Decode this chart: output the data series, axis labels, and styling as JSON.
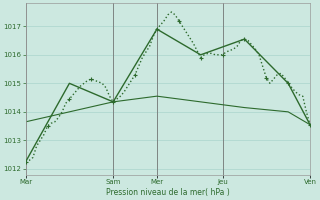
{
  "background_color": "#cce8e0",
  "grid_color": "#aad4cc",
  "line_color": "#2d6a2d",
  "ylim": [
    1011.8,
    1017.8
  ],
  "yticks": [
    1012,
    1013,
    1014,
    1015,
    1016,
    1017
  ],
  "xlabel": "Pression niveau de la mer( hPa )",
  "xtick_labels": [
    "Mar",
    "Sam",
    "Mer",
    "Jeu",
    "Ven"
  ],
  "xtick_positions": [
    0,
    24,
    36,
    54,
    78
  ],
  "x_vlines": [
    0,
    24,
    36,
    54,
    78
  ],
  "xlim": [
    0,
    78
  ],
  "series1_dotted": {
    "x": [
      0,
      1,
      2,
      3,
      4,
      5,
      6,
      7,
      8,
      9,
      10,
      11,
      12,
      13,
      14,
      15,
      16,
      17,
      18,
      19,
      20,
      21,
      22,
      23,
      24,
      25,
      26,
      27,
      28,
      29,
      30,
      31,
      32,
      33,
      34,
      35,
      36,
      37,
      38,
      39,
      40,
      41,
      42,
      43,
      44,
      45,
      46,
      47,
      48,
      49,
      50,
      51,
      52,
      53,
      54,
      55,
      56,
      57,
      58,
      59,
      60,
      61,
      62,
      63,
      64,
      65,
      66,
      67,
      68,
      69,
      70,
      71,
      72,
      73,
      74,
      75,
      76,
      77,
      78
    ],
    "y": [
      1012.25,
      1012.3,
      1012.4,
      1012.8,
      1013.0,
      1013.2,
      1013.5,
      1013.6,
      1013.65,
      1013.8,
      1014.0,
      1014.3,
      1014.45,
      1014.6,
      1014.75,
      1014.9,
      1015.0,
      1015.1,
      1015.15,
      1015.1,
      1015.05,
      1015.0,
      1014.85,
      1014.55,
      1014.35,
      1014.45,
      1014.55,
      1014.7,
      1014.9,
      1015.1,
      1015.3,
      1015.6,
      1015.9,
      1016.1,
      1016.3,
      1016.65,
      1016.9,
      1017.05,
      1017.2,
      1017.4,
      1017.5,
      1017.4,
      1017.2,
      1017.0,
      1016.8,
      1016.6,
      1016.4,
      1016.15,
      1015.9,
      1016.0,
      1016.05,
      1016.05,
      1016.0,
      1016.0,
      1016.0,
      1016.1,
      1016.15,
      1016.2,
      1016.3,
      1016.5,
      1016.55,
      1016.5,
      1016.35,
      1016.2,
      1016.0,
      1015.6,
      1015.2,
      1015.0,
      1015.15,
      1015.3,
      1015.35,
      1015.2,
      1015.0,
      1014.85,
      1014.7,
      1014.6,
      1014.55,
      1014.0,
      1013.55
    ],
    "linestyle": ":",
    "linewidth": 1.0,
    "marker": "D",
    "markersize": 2.5,
    "markevery": 6
  },
  "series2_smooth": {
    "x": [
      0,
      12,
      24,
      36,
      48,
      60,
      72,
      78
    ],
    "y": [
      1012.25,
      1015.0,
      1014.35,
      1016.9,
      1016.0,
      1016.55,
      1015.0,
      1013.55
    ],
    "linestyle": "-",
    "linewidth": 1.0
  },
  "series3_trend": {
    "x": [
      0,
      12,
      24,
      36,
      48,
      60,
      72,
      78
    ],
    "y": [
      1013.65,
      1014.0,
      1014.35,
      1014.55,
      1014.35,
      1014.15,
      1014.0,
      1013.55
    ],
    "linestyle": "-",
    "linewidth": 0.8
  }
}
